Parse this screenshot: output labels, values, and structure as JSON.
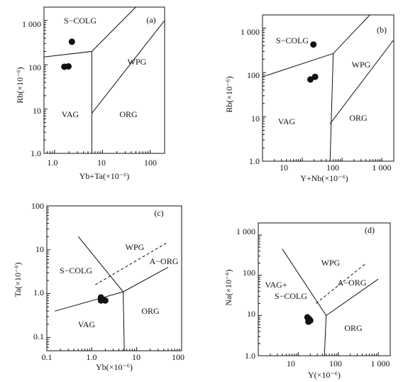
{
  "chart_data": [
    {
      "type": "scatter",
      "panel_label": "(a)",
      "xlabel": "Yb+Ta(×10⁻⁶)",
      "ylabel": "Rb(×10⁻⁶)",
      "x_scale": "log",
      "y_scale": "log",
      "xlim": [
        0.6,
        200
      ],
      "ylim": [
        1,
        2000
      ],
      "x_ticks": [
        {
          "v": 1,
          "label": "1.0"
        },
        {
          "v": 10,
          "label": "10"
        },
        {
          "v": 100,
          "label": "100"
        }
      ],
      "y_ticks": [
        {
          "v": 1,
          "label": "1.0"
        },
        {
          "v": 10,
          "label": "10"
        },
        {
          "v": 100,
          "label": "100"
        },
        {
          "v": 1000,
          "label": "1 000"
        }
      ],
      "regions": [
        "S−COLG",
        "WPG",
        "VAG",
        "ORG"
      ],
      "boundaries": [
        {
          "style": "solid",
          "points": [
            [
              0.6,
              150
            ],
            [
              6,
              200
            ]
          ]
        },
        {
          "style": "solid",
          "points": [
            [
              6,
              200
            ],
            [
              6,
              1
            ]
          ]
        },
        {
          "style": "solid",
          "points": [
            [
              6,
              200
            ],
            [
              50,
              2000
            ]
          ]
        },
        {
          "style": "solid",
          "points": [
            [
              6,
              8
            ],
            [
              200,
              1000
            ]
          ]
        }
      ],
      "points": [
        [
          1.6,
          90
        ],
        [
          1.95,
          92
        ],
        [
          2.3,
          330
        ]
      ]
    },
    {
      "type": "scatter",
      "panel_label": "(b)",
      "xlabel": "Y+Nb(×10⁻⁶)",
      "ylabel": "Rb(×10⁻⁶)",
      "x_scale": "log",
      "y_scale": "log",
      "xlim": [
        1,
        2000
      ],
      "ylim": [
        1,
        2000
      ],
      "x_ticks": [
        {
          "v": 10,
          "label": "10"
        },
        {
          "v": 100,
          "label": "100"
        },
        {
          "v": 1000,
          "label": "1 000"
        }
      ],
      "y_ticks": [
        {
          "v": 1,
          "label": "1.0"
        },
        {
          "v": 10,
          "label": "10"
        },
        {
          "v": 100,
          "label": "100"
        },
        {
          "v": 1000,
          "label": "1 000"
        }
      ],
      "regions": [
        "S−COLG",
        "WPG",
        "VAG",
        "ORG"
      ],
      "boundaries": [
        {
          "style": "solid",
          "points": [
            [
              1,
              80
            ],
            [
              60,
              270
            ]
          ]
        },
        {
          "style": "solid",
          "points": [
            [
              60,
              270
            ],
            [
              50,
              1
            ]
          ]
        },
        {
          "style": "solid",
          "points": [
            [
              60,
              270
            ],
            [
              500,
              2000
            ]
          ]
        },
        {
          "style": "solid",
          "points": [
            [
              50,
              7
            ],
            [
              2000,
              550
            ]
          ]
        }
      ],
      "points": [
        [
          16,
          70
        ],
        [
          21,
          80
        ],
        [
          19,
          430
        ]
      ]
    },
    {
      "type": "scatter",
      "panel_label": "(c)",
      "xlabel": "Yb(×10⁻⁶)",
      "ylabel": "Ta(×10⁻⁶)",
      "x_scale": "log",
      "y_scale": "log",
      "xlim": [
        0.1,
        100
      ],
      "ylim": [
        0.05,
        100
      ],
      "x_ticks": [
        {
          "v": 0.1,
          "label": "0.1"
        },
        {
          "v": 1,
          "label": "1.0"
        },
        {
          "v": 10,
          "label": "10"
        },
        {
          "v": 100,
          "label": "100"
        }
      ],
      "y_ticks": [
        {
          "v": 0.1,
          "label": "0.1"
        },
        {
          "v": 1,
          "label": "1.0"
        },
        {
          "v": 10,
          "label": "10"
        },
        {
          "v": 100,
          "label": "100"
        }
      ],
      "regions": [
        "WPG",
        "A−ORG",
        "S−COLG",
        "ORG",
        "VAG"
      ],
      "boundaries": [
        {
          "style": "solid",
          "points": [
            [
              0.5,
              20
            ],
            [
              5,
              1.1
            ]
          ]
        },
        {
          "style": "solid",
          "points": [
            [
              0.15,
              0.4
            ],
            [
              5,
              1.1
            ]
          ]
        },
        {
          "style": "solid",
          "points": [
            [
              5,
              1.1
            ],
            [
              5.3,
              0.05
            ]
          ]
        },
        {
          "style": "solid",
          "points": [
            [
              5,
              1.1
            ],
            [
              50,
              4
            ]
          ]
        },
        {
          "style": "dashed",
          "points": [
            [
              1.2,
              1.6
            ],
            [
              50,
              15
            ]
          ]
        }
      ],
      "points": [
        [
          1.6,
          0.82
        ],
        [
          1.6,
          0.7
        ],
        [
          1.8,
          0.72
        ],
        [
          2,
          0.7
        ]
      ]
    },
    {
      "type": "scatter",
      "panel_label": "(d)",
      "xlabel": "Y(×10⁻⁶)",
      "ylabel": "Na(×10⁻⁶)",
      "x_scale": "log",
      "y_scale": "log",
      "xlim": [
        1,
        2000
      ],
      "ylim": [
        1,
        2000
      ],
      "x_ticks": [
        {
          "v": 10,
          "label": "10"
        },
        {
          "v": 100,
          "label": "100"
        },
        {
          "v": 1000,
          "label": "1 000"
        }
      ],
      "y_ticks": [
        {
          "v": 1,
          "label": "1.0"
        },
        {
          "v": 10,
          "label": "10"
        },
        {
          "v": 100,
          "label": "100"
        },
        {
          "v": 1000,
          "label": "1 000"
        }
      ],
      "regions": [
        "WPG",
        "VAG+",
        "A−ORG",
        "S−COLG",
        "ORG"
      ],
      "boundaries": [
        {
          "style": "solid",
          "points": [
            [
              4,
              450
            ],
            [
              50,
              10
            ]
          ]
        },
        {
          "style": "solid",
          "points": [
            [
              50,
              10
            ],
            [
              45,
              1
            ]
          ]
        },
        {
          "style": "solid",
          "points": [
            [
              50,
              10
            ],
            [
              1000,
              80
            ]
          ]
        },
        {
          "style": "dashed",
          "points": [
            [
              28,
              20
            ],
            [
              500,
              200
            ]
          ]
        }
      ],
      "points": [
        [
          17,
          9
        ],
        [
          18,
          7
        ],
        [
          20,
          7.5
        ],
        [
          19,
          8
        ]
      ]
    }
  ]
}
